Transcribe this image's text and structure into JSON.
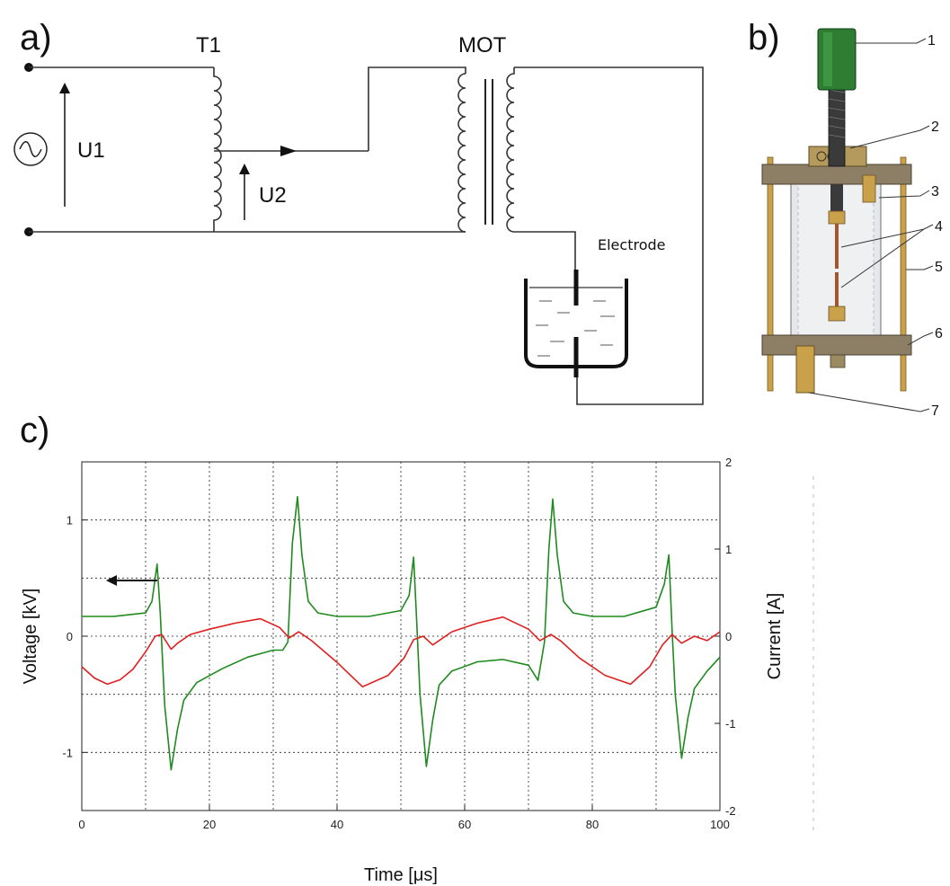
{
  "panels": {
    "a": {
      "label": "a)",
      "t1_label": "T1",
      "mot_label": "MOT",
      "u1_label": "U1",
      "u2_label": "U2",
      "electrode_label": "Electrode"
    },
    "b": {
      "label": "b)",
      "parts": [
        "1",
        "2",
        "3",
        "4",
        "5",
        "6",
        "7"
      ]
    },
    "c": {
      "label": "c)"
    }
  },
  "colors": {
    "voltage": "#1f8a1f",
    "current": "#e02020",
    "green_cap": "#2e7d32",
    "brass": "#c8a14a"
  },
  "chart_data": {
    "type": "line",
    "title": "",
    "xlabel": "Time [μs]",
    "ylabel": "Voltage [kV]",
    "ylabel_right": "Current [A]",
    "xlim": [
      0,
      100
    ],
    "ylim": [
      -1.5,
      1.5
    ],
    "ylim_right": [
      -2,
      2
    ],
    "x_ticks": [
      "0",
      "20",
      "40",
      "60",
      "80",
      "100"
    ],
    "y_ticks": [
      "-1",
      "0",
      "1"
    ],
    "y_ticks_right": [
      "-2",
      "-1",
      "0",
      "1",
      "2"
    ],
    "grid": true,
    "series": [
      {
        "name": "",
        "axis": "left",
        "x": [
          0,
          5,
          10,
          11,
          11.8,
          12.3,
          13,
          14,
          15,
          16,
          18,
          22,
          26,
          30,
          31.5,
          32.3,
          33,
          33.8,
          34.5,
          35.5,
          37,
          40,
          45,
          50,
          51.3,
          52,
          52.5,
          53,
          54,
          55,
          56,
          58,
          62,
          66,
          70,
          71.5,
          72.5,
          73.2,
          73.8,
          74.5,
          75.5,
          77,
          80,
          85,
          90,
          91.3,
          92,
          92.5,
          93,
          94,
          95,
          96,
          98,
          100
        ],
        "y": [
          0.17,
          0.17,
          0.2,
          0.3,
          0.62,
          0.2,
          -0.6,
          -1.15,
          -0.8,
          -0.55,
          -0.4,
          -0.28,
          -0.18,
          -0.12,
          -0.12,
          -0.05,
          0.8,
          1.2,
          0.7,
          0.3,
          0.2,
          0.17,
          0.17,
          0.22,
          0.35,
          0.68,
          0.1,
          -0.5,
          -1.12,
          -0.72,
          -0.42,
          -0.3,
          -0.22,
          -0.2,
          -0.25,
          -0.38,
          -0.05,
          0.75,
          1.18,
          0.7,
          0.3,
          0.2,
          0.17,
          0.17,
          0.25,
          0.45,
          0.7,
          0.05,
          -0.5,
          -1.05,
          -0.7,
          -0.45,
          -0.3,
          -0.18
        ]
      },
      {
        "name": "",
        "axis": "right",
        "x": [
          0,
          2,
          4,
          6,
          8,
          10,
          11.5,
          12.5,
          14,
          15,
          17,
          20,
          24,
          28,
          31,
          32.5,
          34,
          36,
          40,
          44,
          48,
          50.5,
          52,
          53.5,
          55,
          58,
          62,
          66,
          70,
          71.8,
          73.5,
          75,
          78,
          82,
          86,
          89,
          91,
          92.5,
          94,
          96,
          98,
          100
        ],
        "y": [
          -0.35,
          -0.48,
          -0.55,
          -0.5,
          -0.38,
          -0.18,
          0.0,
          0.02,
          -0.15,
          -0.08,
          0.02,
          0.08,
          0.15,
          0.2,
          0.1,
          -0.02,
          0.05,
          -0.05,
          -0.3,
          -0.58,
          -0.45,
          -0.25,
          -0.04,
          0.0,
          -0.1,
          0.05,
          0.15,
          0.22,
          0.08,
          -0.05,
          0.02,
          -0.05,
          -0.25,
          -0.45,
          -0.55,
          -0.35,
          -0.1,
          0.02,
          -0.08,
          0.0,
          -0.05,
          0.05
        ]
      }
    ]
  }
}
